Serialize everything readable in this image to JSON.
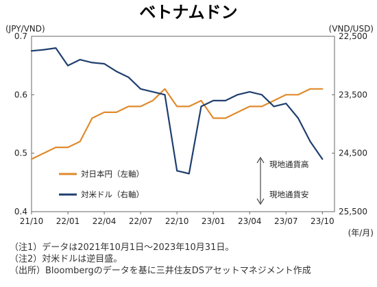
{
  "chart_data": {
    "type": "line",
    "title": "ベトナムドン",
    "left_unit": "(JPY/VND)",
    "right_unit": "(VND/USD)",
    "x_unit": "(年/月)",
    "x_tick_labels": [
      "21/10",
      "22/01",
      "22/04",
      "22/07",
      "22/10",
      "23/01",
      "23/04",
      "23/07",
      "23/10"
    ],
    "y_left": {
      "min": 0.4,
      "max": 0.7,
      "ticks": [
        0.7,
        0.6,
        0.5,
        0.4
      ],
      "tick_labels": [
        "0.7",
        "0.6",
        "0.5",
        "0.4"
      ]
    },
    "y_right": {
      "min": 22500,
      "max": 25500,
      "inverted": true,
      "ticks": [
        22500,
        23500,
        24500,
        25500
      ],
      "tick_labels": [
        "22,500",
        "23,500",
        "24,500",
        "25,500"
      ]
    },
    "series": [
      {
        "name": "対日本円（左軸）",
        "axis": "left",
        "color": "#E08A2B",
        "x": [
          "2021-10",
          "2021-11",
          "2021-12",
          "2022-01",
          "2022-02",
          "2022-03",
          "2022-04",
          "2022-05",
          "2022-06",
          "2022-07",
          "2022-08",
          "2022-09",
          "2022-10",
          "2022-11",
          "2022-12",
          "2023-01",
          "2023-02",
          "2023-03",
          "2023-04",
          "2023-05",
          "2023-06",
          "2023-07",
          "2023-08",
          "2023-09",
          "2023-10"
        ],
        "y": [
          0.49,
          0.5,
          0.51,
          0.51,
          0.52,
          0.56,
          0.57,
          0.57,
          0.58,
          0.58,
          0.59,
          0.61,
          0.58,
          0.58,
          0.59,
          0.56,
          0.56,
          0.57,
          0.58,
          0.58,
          0.59,
          0.6,
          0.6,
          0.61,
          0.61
        ]
      },
      {
        "name": "対米ドル（右軸）",
        "axis": "right",
        "color": "#1F3E6E",
        "x": [
          "2021-10",
          "2021-11",
          "2021-12",
          "2022-01",
          "2022-02",
          "2022-03",
          "2022-04",
          "2022-05",
          "2022-06",
          "2022-07",
          "2022-08",
          "2022-09",
          "2022-10",
          "2022-11",
          "2022-12",
          "2023-01",
          "2023-02",
          "2023-03",
          "2023-04",
          "2023-05",
          "2023-06",
          "2023-07",
          "2023-08",
          "2023-09",
          "2023-10"
        ],
        "y": [
          22750,
          22730,
          22700,
          23000,
          22900,
          22950,
          22970,
          23100,
          23200,
          23400,
          23450,
          23500,
          24800,
          24850,
          23700,
          23600,
          23600,
          23500,
          23450,
          23500,
          23700,
          23650,
          23900,
          24300,
          24600
        ]
      }
    ],
    "annotations": {
      "up_label": "現地通貨高",
      "down_label": "現地通貨安"
    },
    "grid": false,
    "legend_position": "inside-lower-left"
  },
  "notes": [
    "（注1）データは2021年10月1日～2023年10月31日。",
    "（注2）対米ドルは逆目盛。",
    "（出所）Bloombergのデータを基に三井住友DSアセットマネジメント作成"
  ]
}
